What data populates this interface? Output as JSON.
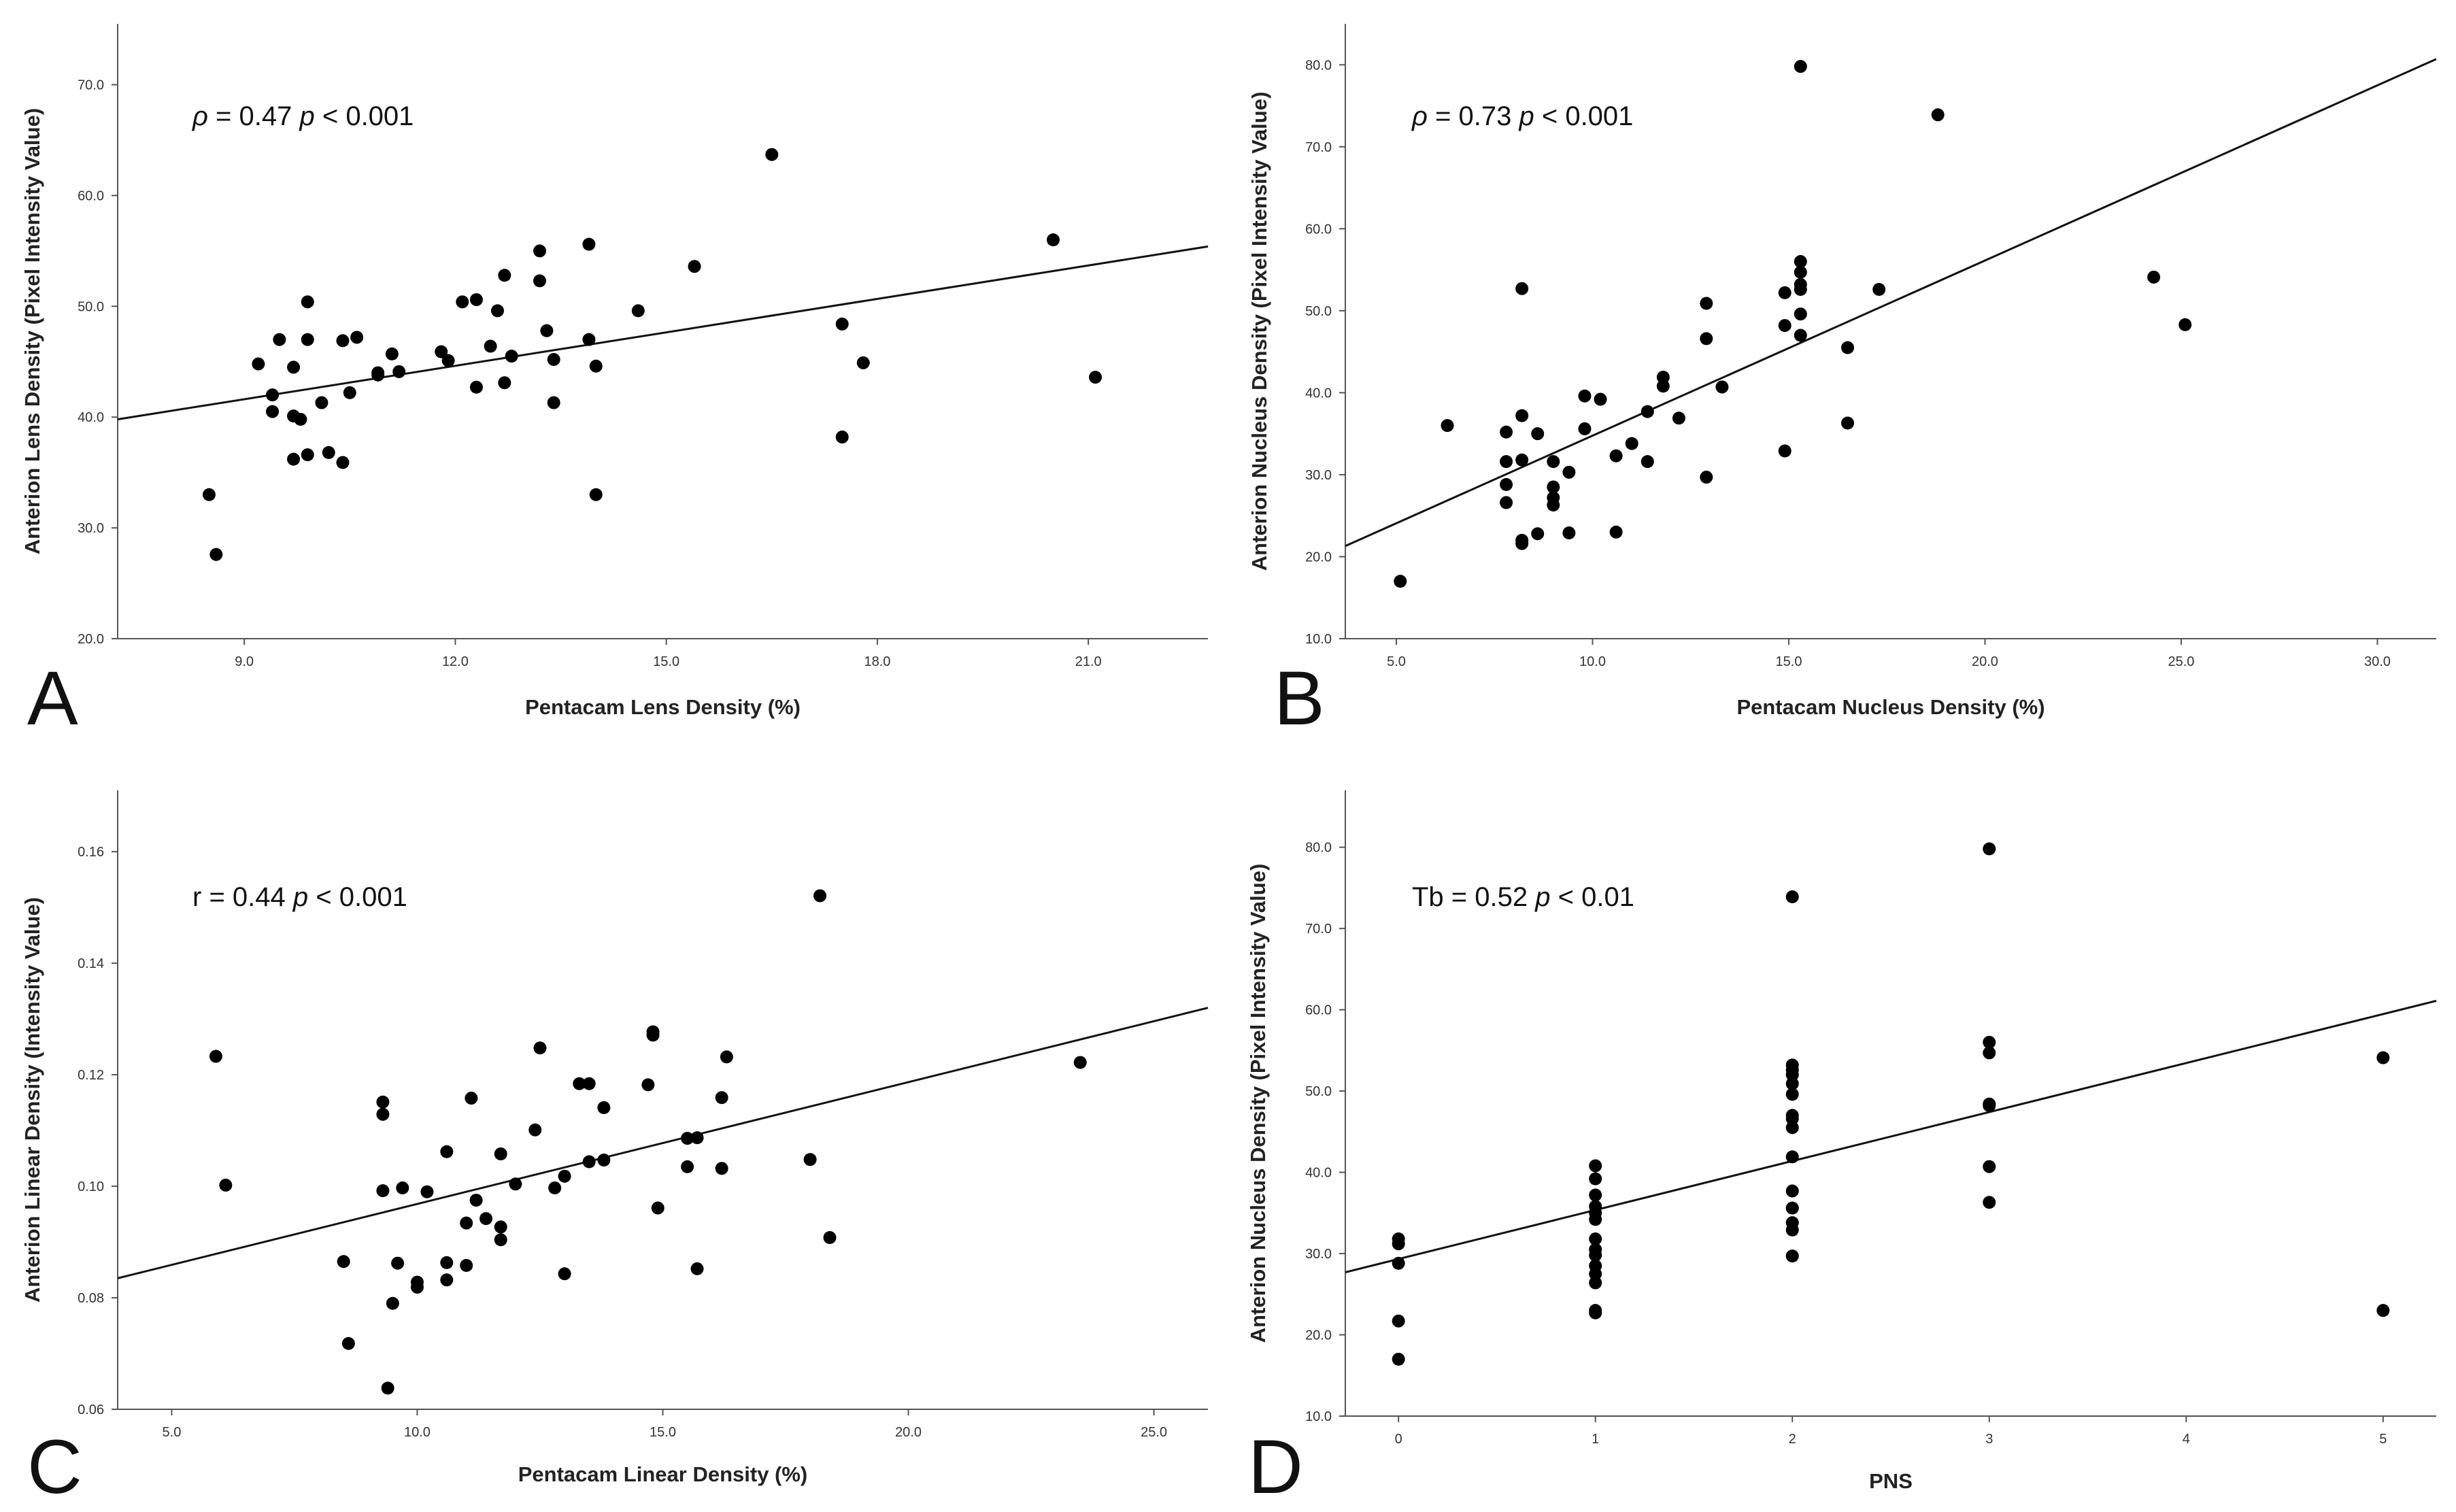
{
  "chart_data": [
    {
      "type": "scatter",
      "panel": "A",
      "xlabel": "Pentacam Lens Density (%)",
      "ylabel": "Anterion Lens Density (Pixel Intensity Value)",
      "xlim": [
        7.2,
        22.7
      ],
      "ylim": [
        20,
        75.5
      ],
      "xticks": [
        9,
        12,
        15,
        18,
        21
      ],
      "yticks": [
        20,
        30,
        40,
        50,
        60,
        70
      ],
      "decimals": 1,
      "annotation": {
        "symbol": "ρ",
        "rest": " = 0.47  ",
        "p_symbol": "p",
        "p_rest": " < 0.001"
      },
      "fit": {
        "x": [
          7.2,
          22.7
        ],
        "y": [
          39.8,
          55.4
        ]
      },
      "points": [
        [
          8.5,
          33
        ],
        [
          8.6,
          27.6
        ],
        [
          9.2,
          44.8
        ],
        [
          9.4,
          42
        ],
        [
          9.4,
          40.5
        ],
        [
          9.5,
          47
        ],
        [
          9.7,
          44.5
        ],
        [
          9.7,
          36.2
        ],
        [
          9.7,
          40.1
        ],
        [
          9.8,
          39.8
        ],
        [
          9.9,
          50.4
        ],
        [
          9.9,
          47
        ],
        [
          9.9,
          36.6
        ],
        [
          10.1,
          41.3
        ],
        [
          10.2,
          36.8
        ],
        [
          10.4,
          35.9
        ],
        [
          10.4,
          46.9
        ],
        [
          10.5,
          42.2
        ],
        [
          10.6,
          47.2
        ],
        [
          10.9,
          44
        ],
        [
          10.9,
          43.8
        ],
        [
          11.1,
          45.7
        ],
        [
          11.2,
          44.1
        ],
        [
          11.8,
          45.9
        ],
        [
          11.9,
          45.1
        ],
        [
          12.1,
          50.4
        ],
        [
          12.3,
          50.6
        ],
        [
          12.3,
          42.7
        ],
        [
          12.5,
          46.4
        ],
        [
          12.6,
          49.6
        ],
        [
          12.7,
          52.8
        ],
        [
          12.7,
          43.1
        ],
        [
          12.8,
          45.5
        ],
        [
          13.2,
          55
        ],
        [
          13.2,
          52.3
        ],
        [
          13.3,
          47.8
        ],
        [
          13.4,
          45.2
        ],
        [
          13.4,
          41.3
        ],
        [
          13.9,
          55.6
        ],
        [
          13.9,
          47
        ],
        [
          14,
          44.6
        ],
        [
          14,
          33
        ],
        [
          14.6,
          49.6
        ],
        [
          15.4,
          53.6
        ],
        [
          16.5,
          63.7
        ],
        [
          17.5,
          48.4
        ],
        [
          17.5,
          38.2
        ],
        [
          17.8,
          44.9
        ],
        [
          20.5,
          56
        ],
        [
          21.1,
          43.6
        ]
      ]
    },
    {
      "type": "scatter",
      "panel": "B",
      "xlabel": "Pentacam Nucleus Density (%)",
      "ylabel": "Anterion Nucleus Density (Pixel Intensity Value)",
      "xlim": [
        3.7,
        31.5
      ],
      "ylim": [
        10,
        85
      ],
      "xticks": [
        5,
        10,
        15,
        20,
        25,
        30
      ],
      "yticks": [
        10,
        20,
        30,
        40,
        50,
        60,
        70,
        80
      ],
      "decimals": 1,
      "annotation": {
        "symbol": "ρ",
        "rest": " = 0.73  ",
        "p_symbol": "p",
        "p_rest": " < 0.001"
      },
      "fit": {
        "x": [
          3.7,
          31.5
        ],
        "y": [
          21.3,
          80.7
        ]
      },
      "points": [
        [
          5.1,
          17
        ],
        [
          6.3,
          36
        ],
        [
          7.8,
          35.2
        ],
        [
          7.8,
          31.6
        ],
        [
          7.8,
          28.8
        ],
        [
          7.8,
          26.6
        ],
        [
          8.2,
          37.2
        ],
        [
          8.2,
          31.8
        ],
        [
          8.2,
          22
        ],
        [
          8.2,
          21.6
        ],
        [
          8.2,
          52.7
        ],
        [
          8.6,
          35
        ],
        [
          8.6,
          22.8
        ],
        [
          9,
          31.6
        ],
        [
          9,
          28.5
        ],
        [
          9,
          27.2
        ],
        [
          9,
          26.3
        ],
        [
          9.4,
          30.3
        ],
        [
          9.4,
          22.9
        ],
        [
          9.8,
          39.6
        ],
        [
          9.8,
          35.6
        ],
        [
          10.2,
          39.2
        ],
        [
          10.6,
          32.3
        ],
        [
          10.6,
          23
        ],
        [
          11,
          33.8
        ],
        [
          11.4,
          37.7
        ],
        [
          11.4,
          31.6
        ],
        [
          11.8,
          41.9
        ],
        [
          11.8,
          40.8
        ],
        [
          12.2,
          36.9
        ],
        [
          12.9,
          50.9
        ],
        [
          12.9,
          46.6
        ],
        [
          12.9,
          29.7
        ],
        [
          13.3,
          40.7
        ],
        [
          14.9,
          52.2
        ],
        [
          14.9,
          48.2
        ],
        [
          14.9,
          32.9
        ],
        [
          15.3,
          56
        ],
        [
          15.3,
          54.7
        ],
        [
          15.3,
          53.2
        ],
        [
          15.3,
          52.6
        ],
        [
          15.3,
          49.6
        ],
        [
          15.3,
          47
        ],
        [
          15.3,
          79.8
        ],
        [
          16.5,
          45.5
        ],
        [
          16.5,
          36.3
        ],
        [
          17.3,
          52.6
        ],
        [
          18.8,
          73.9
        ],
        [
          24.3,
          54.1
        ],
        [
          25.1,
          48.3
        ]
      ]
    },
    {
      "type": "scatter",
      "panel": "C",
      "xlabel": "Pentacam Linear Density (%)",
      "ylabel": "Anterion Linear Density (Intensity Value)",
      "xlim": [
        3.9,
        26.1
      ],
      "ylim": [
        0.06,
        0.171
      ],
      "xticks": [
        5,
        10,
        15,
        20,
        25
      ],
      "yticks": [
        0.06,
        0.08,
        0.1,
        0.12,
        0.14,
        0.16
      ],
      "xdecimals": 1,
      "ydecimals": 2,
      "annotation": {
        "symbol": "r",
        "rest": " = 0.44  ",
        "p_symbol": "p",
        "p_rest": " < 0.001"
      },
      "fit": {
        "x": [
          3.9,
          26.1
        ],
        "y": [
          0.0835,
          0.132
        ]
      },
      "points": [
        [
          5.9,
          0.1233
        ],
        [
          6.1,
          0.1002
        ],
        [
          8.5,
          0.0865
        ],
        [
          8.6,
          0.0718
        ],
        [
          9.3,
          0.1151
        ],
        [
          9.3,
          0.1129
        ],
        [
          9.3,
          0.0992
        ],
        [
          9.4,
          0.0638
        ],
        [
          9.5,
          0.079
        ],
        [
          9.6,
          0.0862
        ],
        [
          9.7,
          0.0997
        ],
        [
          10,
          0.0828
        ],
        [
          10,
          0.0819
        ],
        [
          10.2,
          0.099
        ],
        [
          10.6,
          0.1062
        ],
        [
          10.6,
          0.0863
        ],
        [
          10.6,
          0.0832
        ],
        [
          11,
          0.0858
        ],
        [
          11,
          0.0934
        ],
        [
          11.1,
          0.1158
        ],
        [
          11.2,
          0.0975
        ],
        [
          11.4,
          0.0942
        ],
        [
          11.7,
          0.1058
        ],
        [
          11.7,
          0.0927
        ],
        [
          11.7,
          0.0904
        ],
        [
          12,
          0.1004
        ],
        [
          12.4,
          0.1101
        ],
        [
          12.5,
          0.1248
        ],
        [
          12.8,
          0.0997
        ],
        [
          13,
          0.1018
        ],
        [
          13,
          0.0843
        ],
        [
          13.3,
          0.1184
        ],
        [
          13.5,
          0.1184
        ],
        [
          13.5,
          0.1044
        ],
        [
          13.8,
          0.1141
        ],
        [
          13.8,
          0.1047
        ],
        [
          14.7,
          0.1182
        ],
        [
          14.8,
          0.1277
        ],
        [
          14.8,
          0.1271
        ],
        [
          14.9,
          0.0961
        ],
        [
          15.5,
          0.1086
        ],
        [
          15.5,
          0.1035
        ],
        [
          15.7,
          0.1087
        ],
        [
          15.7,
          0.0852
        ],
        [
          16.2,
          0.1159
        ],
        [
          16.2,
          0.1032
        ],
        [
          16.3,
          0.1232
        ],
        [
          18,
          0.1048
        ],
        [
          18.2,
          0.1521
        ],
        [
          18.4,
          0.0908
        ],
        [
          23.5,
          0.1222
        ]
      ]
    },
    {
      "type": "scatter",
      "panel": "D",
      "xlabel": "PNS",
      "ylabel": "Anterion Nucleus Density (Pixel Intensity Value)",
      "xlim": [
        -0.27,
        5.27
      ],
      "ylim": [
        10,
        87
      ],
      "xticks": [
        0,
        1,
        2,
        3,
        4,
        5
      ],
      "yticks": [
        10,
        20,
        30,
        40,
        50,
        60,
        70,
        80
      ],
      "xdecimals": 0,
      "ydecimals": 1,
      "annotation": {
        "symbol": "Tb",
        "rest": " = 0.52  ",
        "p_symbol": "p",
        "p_rest": " < 0.01"
      },
      "fit": {
        "x": [
          -0.27,
          5.27
        ],
        "y": [
          27.7,
          61.1
        ]
      },
      "points": [
        [
          0,
          31.8
        ],
        [
          0,
          31.2
        ],
        [
          0,
          28.8
        ],
        [
          0,
          21.7
        ],
        [
          0,
          17
        ],
        [
          1,
          40.8
        ],
        [
          1,
          39.2
        ],
        [
          1,
          37.2
        ],
        [
          1,
          35.8
        ],
        [
          1,
          35
        ],
        [
          1,
          34.2
        ],
        [
          1,
          31.8
        ],
        [
          1,
          30.5
        ],
        [
          1,
          29.8
        ],
        [
          1,
          28.5
        ],
        [
          1,
          27.5
        ],
        [
          1,
          26.4
        ],
        [
          1,
          23
        ],
        [
          1,
          22.7
        ],
        [
          2,
          73.9
        ],
        [
          2,
          53.2
        ],
        [
          2,
          52.6
        ],
        [
          2,
          52
        ],
        [
          2,
          50.9
        ],
        [
          2,
          49.6
        ],
        [
          2,
          47
        ],
        [
          2,
          46.6
        ],
        [
          2,
          45.5
        ],
        [
          2,
          41.9
        ],
        [
          2,
          37.7
        ],
        [
          2,
          35.6
        ],
        [
          2,
          33.8
        ],
        [
          2,
          32.9
        ],
        [
          2,
          29.7
        ],
        [
          3,
          79.8
        ],
        [
          3,
          56
        ],
        [
          3,
          54.7
        ],
        [
          3,
          48.4
        ],
        [
          3,
          48.2
        ],
        [
          3,
          40.7
        ],
        [
          3,
          36.3
        ],
        [
          5,
          54.1
        ],
        [
          5,
          23
        ]
      ]
    }
  ]
}
